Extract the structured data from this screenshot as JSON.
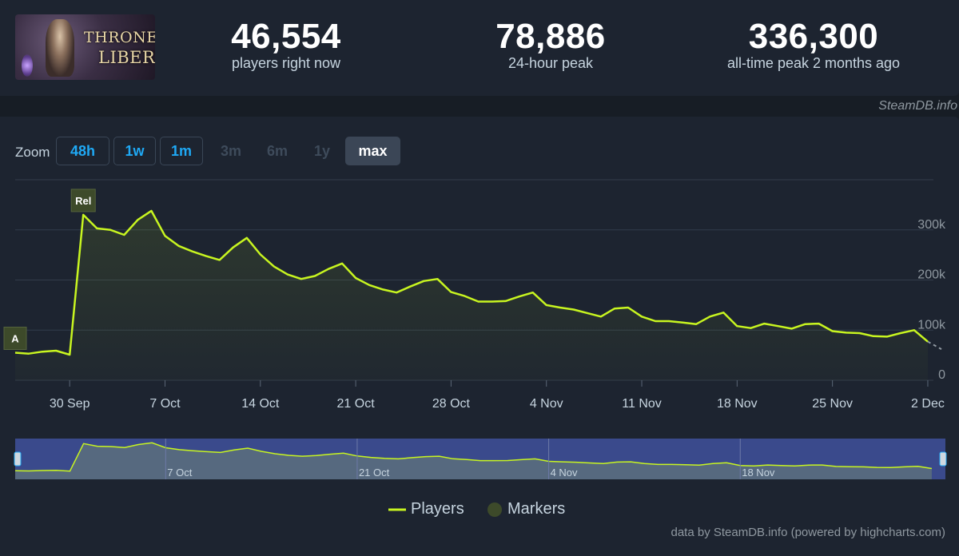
{
  "header": {
    "logo_line1": "THRONE",
    "logo_line2": "LIBERTY",
    "stats": [
      {
        "value": "46,554",
        "label": "players right now"
      },
      {
        "value": "78,886",
        "label": "24-hour peak"
      },
      {
        "value": "336,300",
        "label": "all-time peak 2 months ago"
      }
    ]
  },
  "credit_top": "SteamDB.info",
  "zoom": {
    "label": "Zoom",
    "buttons": [
      {
        "label": "48h",
        "state": "enabled"
      },
      {
        "label": "1w",
        "state": "enabled"
      },
      {
        "label": "1m",
        "state": "enabled"
      },
      {
        "label": "3m",
        "state": "disabled"
      },
      {
        "label": "6m",
        "state": "disabled"
      },
      {
        "label": "1y",
        "state": "disabled"
      },
      {
        "label": "max",
        "state": "active"
      }
    ]
  },
  "legend": {
    "players": "Players",
    "markers": "Markers"
  },
  "credit_bottom": "data by SteamDB.info (powered by highcharts.com)",
  "colors": {
    "line": "#c8f520",
    "marker": "#3d4a2a",
    "navigator_fill": "#3a4a8c",
    "accent": "#1fa9f5"
  },
  "chart_data": {
    "type": "line",
    "series": [
      {
        "name": "Players",
        "points": [
          [
            "2024-09-26",
            55000
          ],
          [
            "2024-09-27",
            53000
          ],
          [
            "2024-09-28",
            57000
          ],
          [
            "2024-09-29",
            59000
          ],
          [
            "2024-09-30",
            51000
          ],
          [
            "2024-10-01",
            330000
          ],
          [
            "2024-10-02",
            303000
          ],
          [
            "2024-10-03",
            300000
          ],
          [
            "2024-10-04",
            290000
          ],
          [
            "2024-10-05",
            320000
          ],
          [
            "2024-10-06",
            338000
          ],
          [
            "2024-10-07",
            288000
          ],
          [
            "2024-10-08",
            268000
          ],
          [
            "2024-10-09",
            257000
          ],
          [
            "2024-10-10",
            248000
          ],
          [
            "2024-10-11",
            240000
          ],
          [
            "2024-10-12",
            265000
          ],
          [
            "2024-10-13",
            284000
          ],
          [
            "2024-10-14",
            251000
          ],
          [
            "2024-10-15",
            227000
          ],
          [
            "2024-10-16",
            211000
          ],
          [
            "2024-10-17",
            202000
          ],
          [
            "2024-10-18",
            208000
          ],
          [
            "2024-10-19",
            222000
          ],
          [
            "2024-10-20",
            233000
          ],
          [
            "2024-10-21",
            204000
          ],
          [
            "2024-10-22",
            190000
          ],
          [
            "2024-10-23",
            181000
          ],
          [
            "2024-10-24",
            175000
          ],
          [
            "2024-10-25",
            187000
          ],
          [
            "2024-10-26",
            198000
          ],
          [
            "2024-10-27",
            202000
          ],
          [
            "2024-10-28",
            176000
          ],
          [
            "2024-10-29",
            168000
          ],
          [
            "2024-10-30",
            157000
          ],
          [
            "2024-10-31",
            157000
          ],
          [
            "2024-11-01",
            158000
          ],
          [
            "2024-11-02",
            167000
          ],
          [
            "2024-11-03",
            175000
          ],
          [
            "2024-11-04",
            150000
          ],
          [
            "2024-11-05",
            145000
          ],
          [
            "2024-11-06",
            141000
          ],
          [
            "2024-11-07",
            134000
          ],
          [
            "2024-11-08",
            127000
          ],
          [
            "2024-11-09",
            143000
          ],
          [
            "2024-11-10",
            145000
          ],
          [
            "2024-11-11",
            127000
          ],
          [
            "2024-11-12",
            118000
          ],
          [
            "2024-11-13",
            118000
          ],
          [
            "2024-11-14",
            115000
          ],
          [
            "2024-11-15",
            112000
          ],
          [
            "2024-11-16",
            127000
          ],
          [
            "2024-11-17",
            135000
          ],
          [
            "2024-11-18",
            108000
          ],
          [
            "2024-11-19",
            104000
          ],
          [
            "2024-11-20",
            113000
          ],
          [
            "2024-11-21",
            108000
          ],
          [
            "2024-11-22",
            103000
          ],
          [
            "2024-11-23",
            112000
          ],
          [
            "2024-11-24",
            113000
          ],
          [
            "2024-11-25",
            98000
          ],
          [
            "2024-11-26",
            95000
          ],
          [
            "2024-11-27",
            94000
          ],
          [
            "2024-11-28",
            88000
          ],
          [
            "2024-11-29",
            87000
          ],
          [
            "2024-11-30",
            94000
          ],
          [
            "2024-12-01",
            100000
          ],
          [
            "2024-12-02",
            77000
          ]
        ]
      }
    ],
    "projection": [
      [
        "2024-12-02",
        77000
      ],
      [
        "2024-12-03",
        62000
      ]
    ],
    "markers": [
      {
        "label": "A",
        "date": "2024-09-26"
      },
      {
        "label": "Rel",
        "date": "2024-10-01"
      }
    ],
    "x_ticks": [
      {
        "label": "30 Sep",
        "date": "2024-09-30"
      },
      {
        "label": "7 Oct",
        "date": "2024-10-07"
      },
      {
        "label": "14 Oct",
        "date": "2024-10-14"
      },
      {
        "label": "21 Oct",
        "date": "2024-10-21"
      },
      {
        "label": "28 Oct",
        "date": "2024-10-28"
      },
      {
        "label": "4 Nov",
        "date": "2024-11-04"
      },
      {
        "label": "11 Nov",
        "date": "2024-11-11"
      },
      {
        "label": "18 Nov",
        "date": "2024-11-18"
      },
      {
        "label": "25 Nov",
        "date": "2024-11-25"
      },
      {
        "label": "2 Dec",
        "date": "2024-12-02"
      }
    ],
    "y_ticks": [
      {
        "label": "0",
        "value": 0
      },
      {
        "label": "100k",
        "value": 100000
      },
      {
        "label": "200k",
        "value": 200000
      },
      {
        "label": "300k",
        "value": 300000
      }
    ],
    "navigator_ticks": [
      {
        "label": "7 Oct",
        "date": "2024-10-07"
      },
      {
        "label": "21 Oct",
        "date": "2024-10-21"
      },
      {
        "label": "4 Nov",
        "date": "2024-11-04"
      },
      {
        "label": "18 Nov",
        "date": "2024-11-18"
      }
    ],
    "xlim": [
      "2024-09-26",
      "2024-12-03"
    ],
    "ylim": [
      0,
      400000
    ],
    "grid": true,
    "legend_position": "bottom-center"
  }
}
